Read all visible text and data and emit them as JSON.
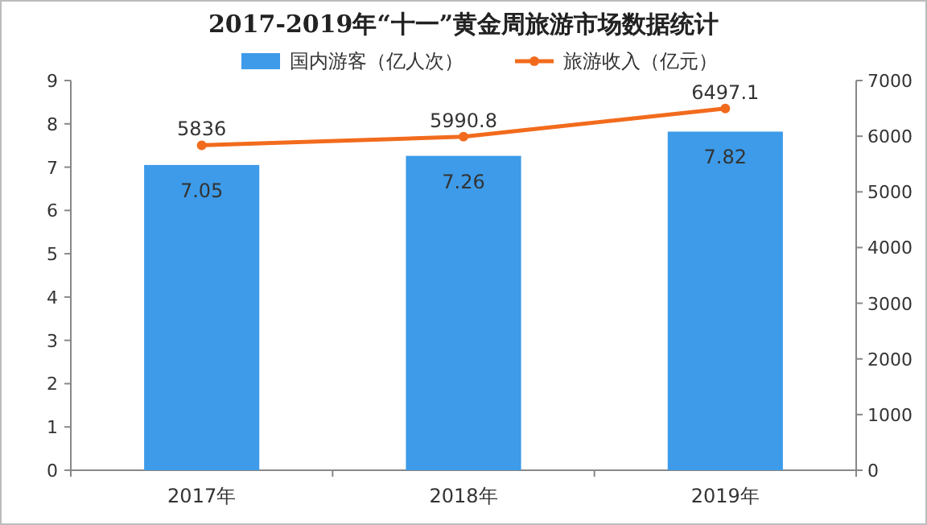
{
  "chart_data": {
    "type": "bar",
    "title": "2017-2019年“十一”黄金周旅游市场数据统计",
    "categories": [
      "2017年",
      "2018年",
      "2019年"
    ],
    "series": [
      {
        "name": "国内游客（亿人次）",
        "type": "bar",
        "color": "#3d9be9",
        "values": [
          7.05,
          7.26,
          7.82
        ]
      },
      {
        "name": "旅游收入（亿元）",
        "type": "line",
        "axis": "y2",
        "color": "#f26b1d",
        "values": [
          5836,
          5990.8,
          6497.1
        ]
      }
    ],
    "ylim": [
      0,
      9
    ],
    "yticks": [
      0,
      1,
      2,
      3,
      4,
      5,
      6,
      7,
      8,
      9
    ],
    "y2lim": [
      0,
      7000
    ],
    "y2ticks": [
      0,
      1000,
      2000,
      3000,
      4000,
      5000,
      6000,
      7000
    ],
    "data_labels": true,
    "legend": "top",
    "grid": false,
    "marker": "circle"
  }
}
